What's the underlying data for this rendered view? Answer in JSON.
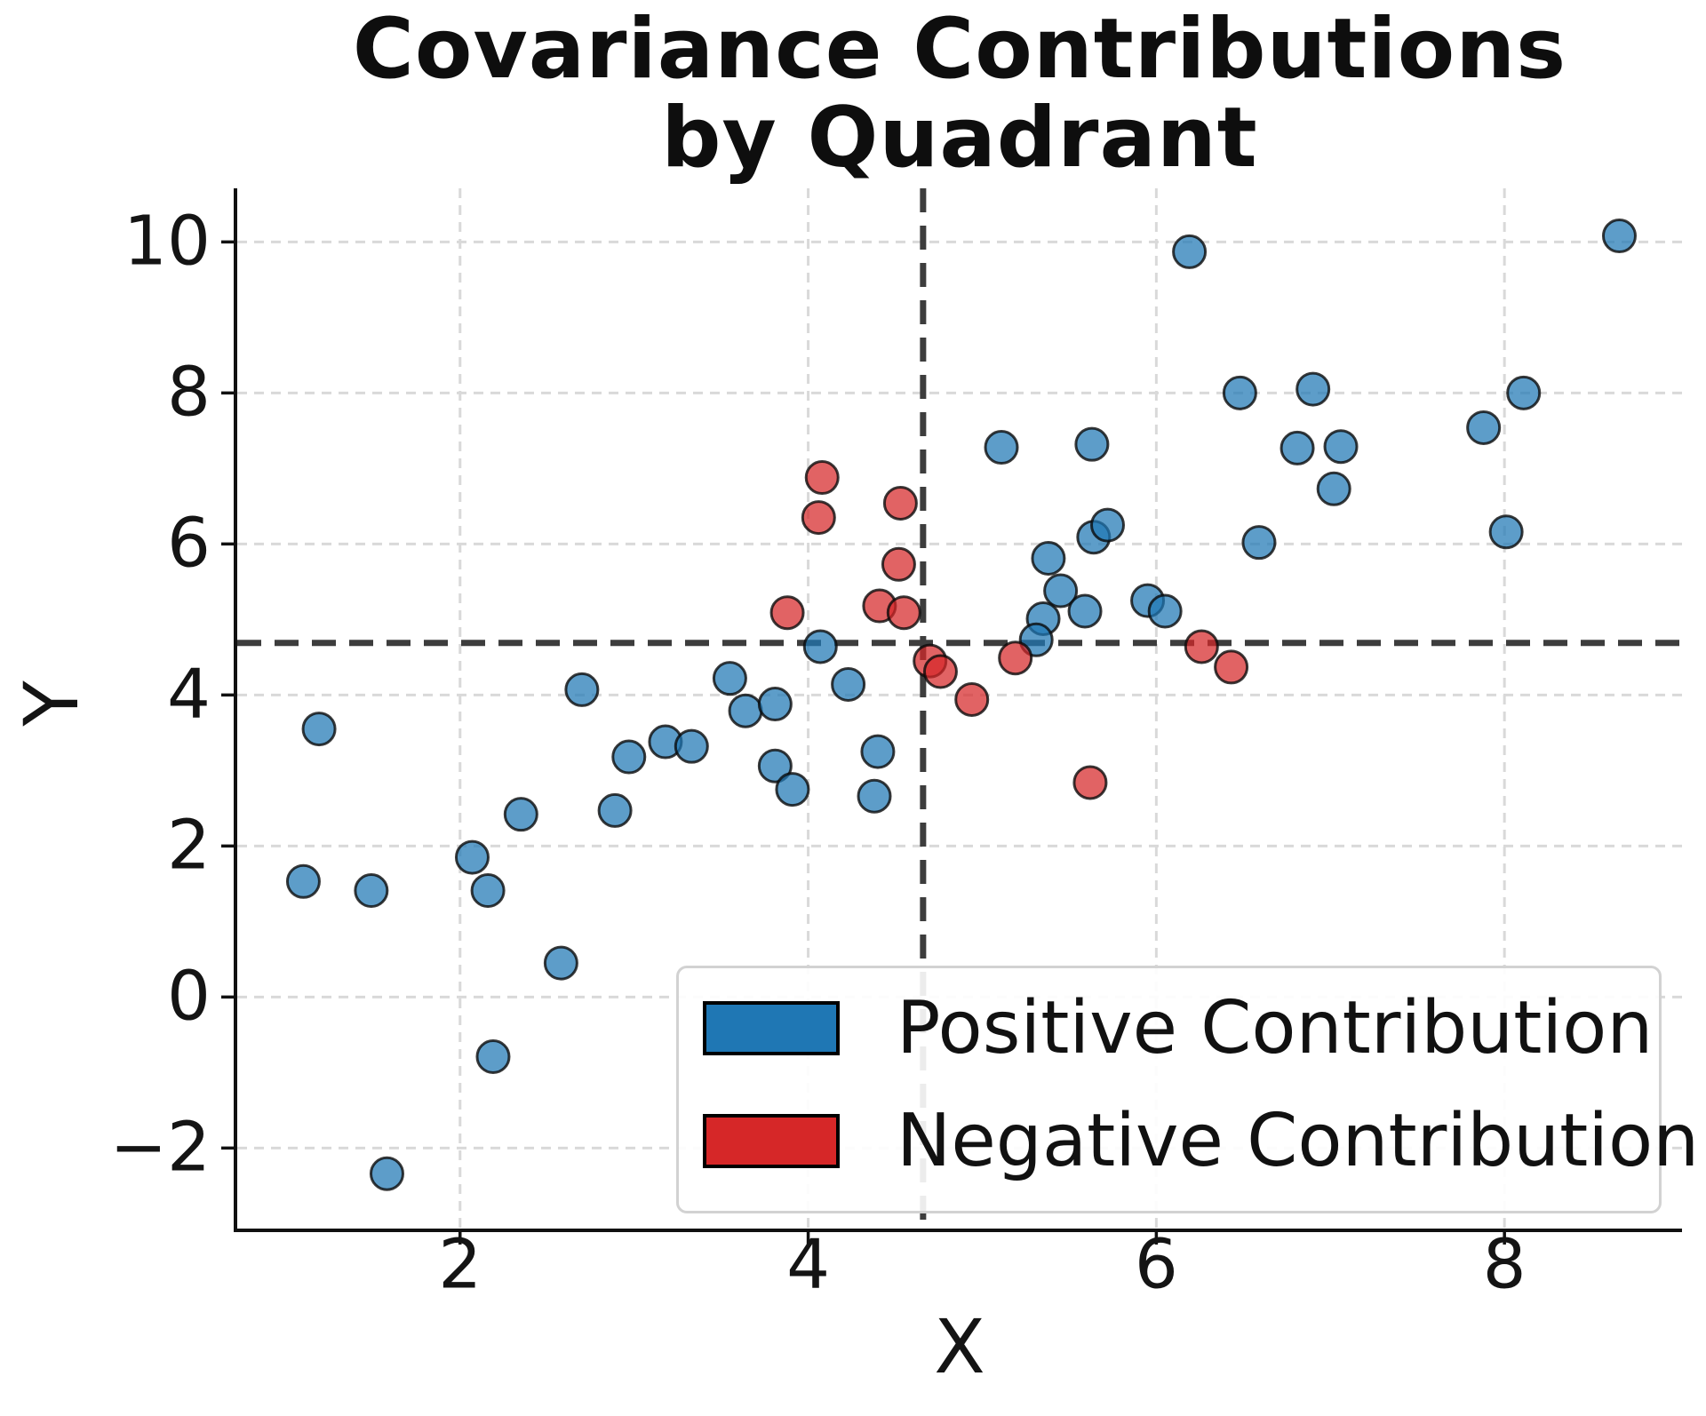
{
  "chart_data": {
    "type": "scatter",
    "title": "Covariance Contributions by Quadrant",
    "title_lines": [
      "Covariance Contributions",
      "by Quadrant"
    ],
    "xlabel": "X",
    "ylabel": "Y",
    "xlim": [
      0.72,
      9.02
    ],
    "ylim": [
      -3.09,
      10.71
    ],
    "x_ticks": [
      2,
      4,
      6,
      8
    ],
    "y_ticks": [
      10,
      8,
      6,
      4,
      2,
      0,
      -2
    ],
    "grid": true,
    "grid_style": "dashed",
    "legend_position": "lower right",
    "mean_lines": {
      "x": 4.66,
      "y": 4.69,
      "style": "dashed",
      "color": "#3d3d3d"
    },
    "marker": {
      "shape": "circle",
      "edge_color": "rgba(10,10,10,0.8)"
    },
    "series": [
      {
        "name": "Positive Contribution",
        "legend_color": "#1f77b4",
        "marker_fill": "rgba(31,119,180,0.72)",
        "points": [
          [
            1.19,
            3.55
          ],
          [
            1.1,
            1.53
          ],
          [
            1.49,
            1.41
          ],
          [
            2.07,
            1.85
          ],
          [
            2.16,
            1.41
          ],
          [
            2.35,
            2.42
          ],
          [
            2.89,
            2.47
          ],
          [
            2.58,
            0.45
          ],
          [
            2.19,
            -0.79
          ],
          [
            1.58,
            -2.34
          ],
          [
            2.7,
            4.07
          ],
          [
            2.97,
            3.18
          ],
          [
            3.18,
            3.38
          ],
          [
            3.33,
            3.32
          ],
          [
            3.55,
            4.22
          ],
          [
            3.64,
            3.79
          ],
          [
            3.81,
            3.88
          ],
          [
            3.81,
            3.06
          ],
          [
            3.91,
            2.75
          ],
          [
            4.23,
            4.14
          ],
          [
            4.4,
            3.25
          ],
          [
            4.38,
            2.66
          ],
          [
            4.07,
            4.64
          ],
          [
            5.11,
            7.28
          ],
          [
            5.63,
            7.32
          ],
          [
            5.38,
            5.81
          ],
          [
            5.45,
            5.38
          ],
          [
            5.59,
            5.11
          ],
          [
            5.35,
            5.01
          ],
          [
            5.31,
            4.73
          ],
          [
            5.64,
            6.09
          ],
          [
            5.72,
            6.25
          ],
          [
            5.95,
            5.25
          ],
          [
            6.05,
            5.11
          ],
          [
            6.19,
            9.87
          ],
          [
            6.48,
            8.0
          ],
          [
            6.9,
            8.05
          ],
          [
            6.59,
            6.02
          ],
          [
            6.81,
            7.27
          ],
          [
            7.06,
            7.29
          ],
          [
            7.02,
            6.73
          ],
          [
            7.88,
            7.54
          ],
          [
            8.11,
            8.0
          ],
          [
            8.01,
            6.16
          ],
          [
            8.66,
            10.08
          ]
        ]
      },
      {
        "name": "Negative Contribution",
        "legend_color": "#d62728",
        "marker_fill": "rgba(214,39,40,0.72)",
        "points": [
          [
            4.08,
            6.88
          ],
          [
            4.06,
            6.35
          ],
          [
            4.53,
            6.54
          ],
          [
            4.52,
            5.73
          ],
          [
            3.88,
            5.09
          ],
          [
            4.41,
            5.18
          ],
          [
            4.55,
            5.09
          ],
          [
            4.7,
            4.45
          ],
          [
            4.76,
            4.31
          ],
          [
            5.19,
            4.49
          ],
          [
            4.94,
            3.94
          ],
          [
            6.26,
            4.64
          ],
          [
            6.43,
            4.37
          ],
          [
            5.62,
            2.84
          ]
        ]
      }
    ]
  }
}
